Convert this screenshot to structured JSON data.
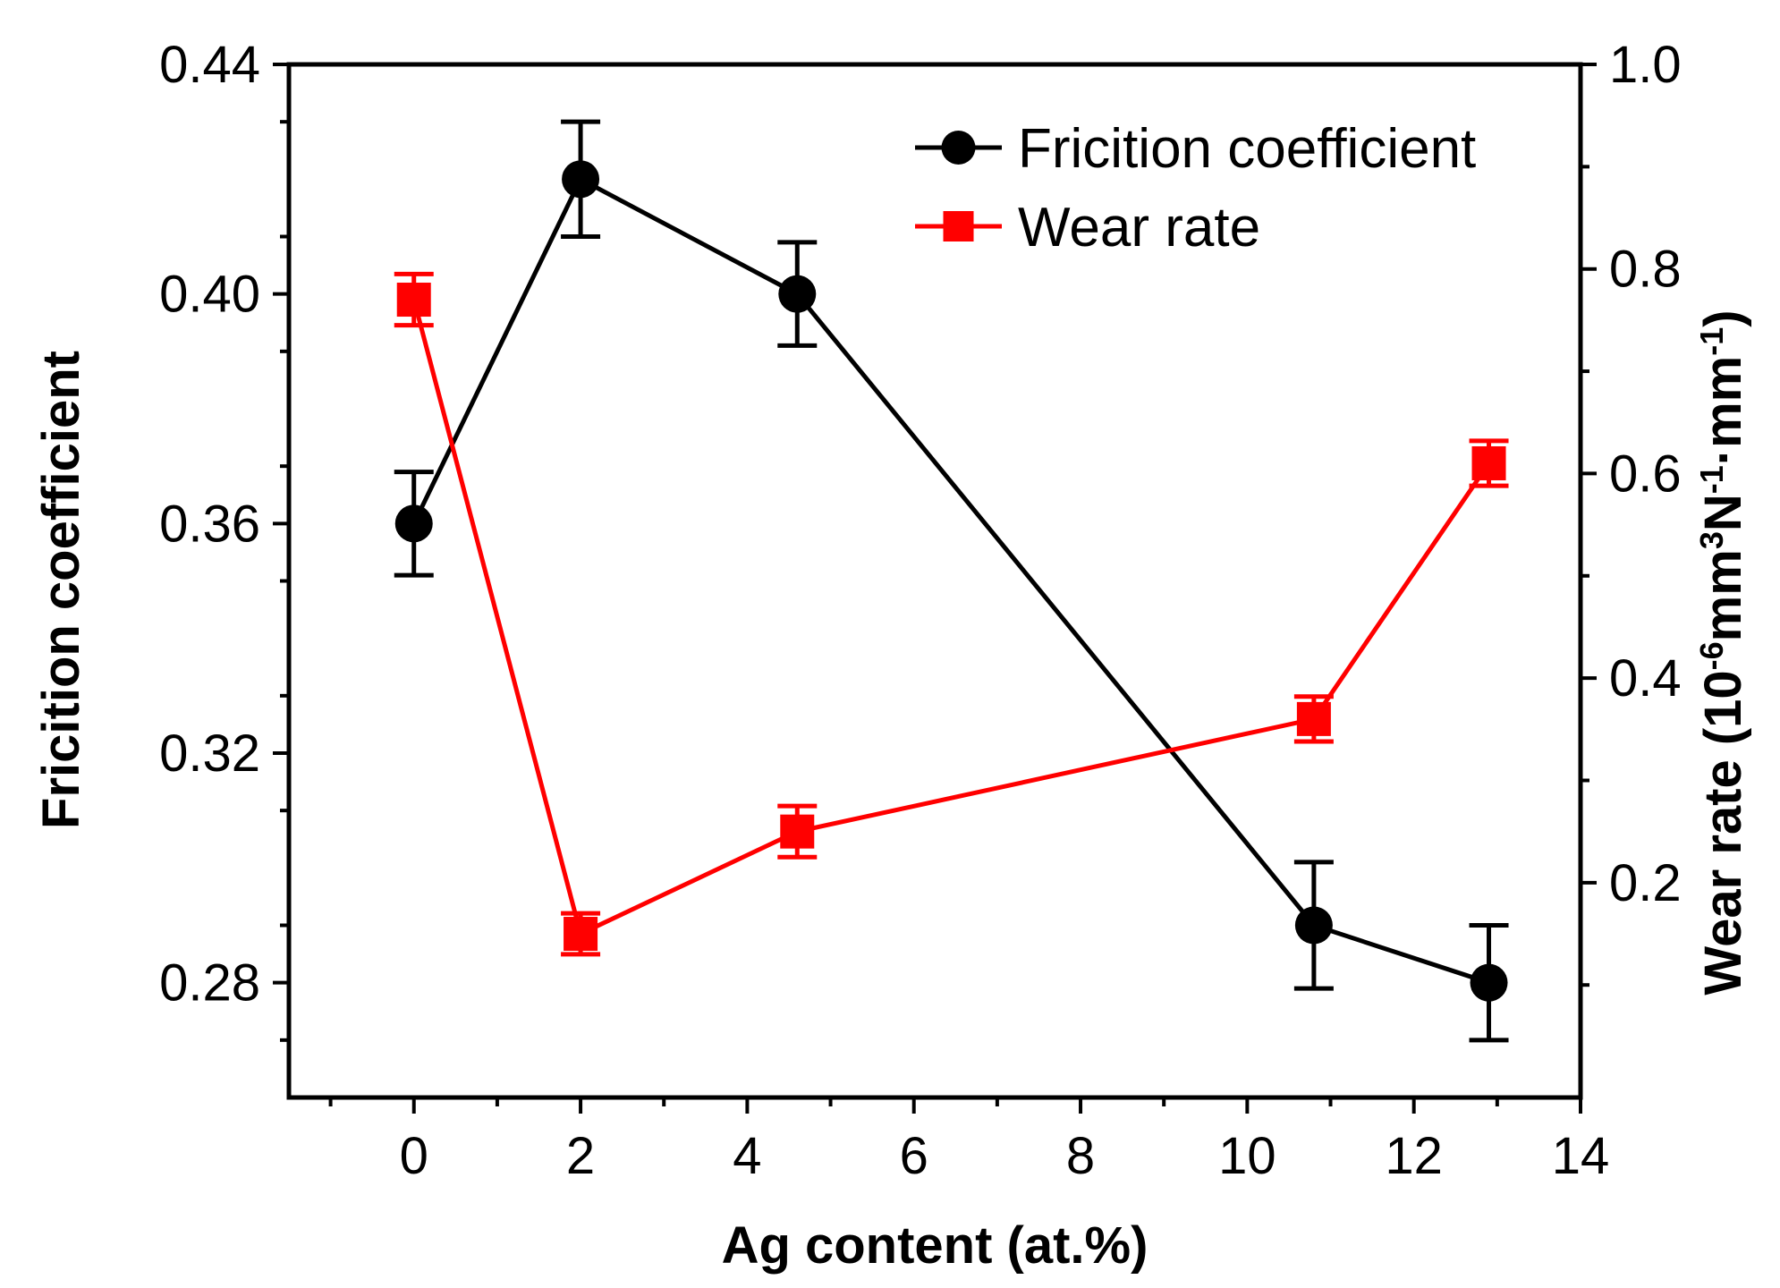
{
  "chart_data": {
    "type": "line",
    "xlabel": "Ag content (at.%)",
    "ylabel": "Fricition coefficient",
    "y2label": {
      "prefix": "Wear rate (10",
      "exp1": "-6",
      "mid1": "mm",
      "exp2": "3",
      "mid2": "N",
      "exp3": "-1",
      "mid3": "·mm",
      "exp4": "-1",
      "suffix": ")"
    },
    "xlim": [
      -1.5,
      14
    ],
    "ylim": [
      0.26,
      0.44
    ],
    "y2lim": [
      -0.01,
      1.0
    ],
    "x_ticks": [
      0,
      2,
      4,
      6,
      8,
      10,
      12,
      14
    ],
    "x_tick_labels": [
      "0",
      "2",
      "4",
      "6",
      "8",
      "10",
      "12",
      "14"
    ],
    "y_ticks": [
      0.28,
      0.32,
      0.36,
      0.4,
      0.44
    ],
    "y_tick_labels": [
      "0.28",
      "0.32",
      "0.36",
      "0.40",
      "0.44"
    ],
    "y2_ticks": [
      0.2,
      0.4,
      0.6,
      0.8,
      1.0
    ],
    "y2_tick_labels": [
      "0.2",
      "0.4",
      "0.6",
      "0.8",
      "1.0"
    ],
    "legend_position": "top-right",
    "series": [
      {
        "name": "Fricition coefficient",
        "axis": "left",
        "color": "#000000",
        "marker": "circle",
        "x": [
          0,
          2,
          4.6,
          10.8,
          12.9
        ],
        "y": [
          0.36,
          0.42,
          0.4,
          0.29,
          0.28
        ],
        "error": [
          0.009,
          0.01,
          0.009,
          0.011,
          0.01
        ]
      },
      {
        "name": "Wear rate",
        "axis": "right",
        "color": "#ff0000",
        "marker": "square",
        "x": [
          0,
          2,
          4.6,
          10.8,
          12.9
        ],
        "y": [
          0.77,
          0.15,
          0.25,
          0.36,
          0.61
        ],
        "error": [
          0.025,
          0.02,
          0.025,
          0.022,
          0.022
        ]
      }
    ]
  }
}
